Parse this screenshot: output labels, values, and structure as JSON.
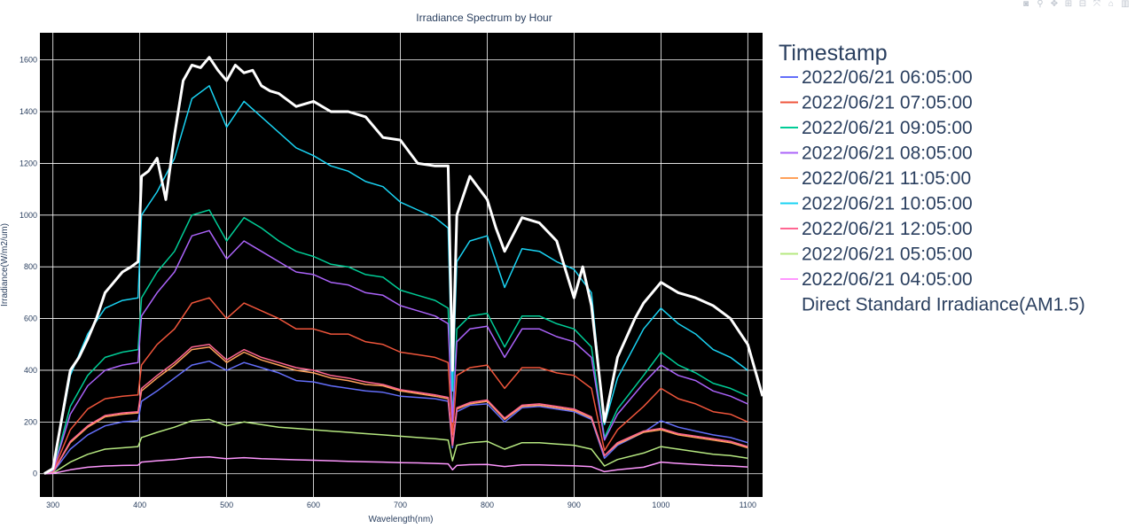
{
  "modebar": {
    "icons": [
      "camera-icon",
      "zoom-icon",
      "pan-icon",
      "zoom-in-icon",
      "zoom-out-icon",
      "autoscale-icon",
      "reset-axes-icon",
      "plotly-logo-icon"
    ]
  },
  "chart_data": {
    "type": "line",
    "title": "Irradiance Spectrum by Hour",
    "xlabel": "Wavelength(nm)",
    "ylabel": "Irradiance(W/m2/um)",
    "xlim": [
      285,
      1117
    ],
    "ylim": [
      -90,
      1705
    ],
    "xticks": [
      300,
      400,
      500,
      600,
      700,
      800,
      900,
      1000,
      1100
    ],
    "yticks": [
      0,
      200,
      400,
      600,
      800,
      1000,
      1200,
      1400,
      1600
    ],
    "plot_background": "#000000",
    "grid": true,
    "legend": {
      "title": "Timestamp",
      "placement": "right"
    },
    "series": [
      {
        "name": "2022/06/21 06:05:00",
        "color": "#636efa",
        "x": [
          290,
          300,
          320,
          340,
          360,
          380,
          398,
          402,
          420,
          440,
          460,
          480,
          500,
          520,
          540,
          560,
          580,
          600,
          620,
          640,
          660,
          680,
          700,
          720,
          740,
          755,
          760,
          765,
          780,
          800,
          820,
          840,
          860,
          880,
          900,
          920,
          935,
          950,
          980,
          1000,
          1020,
          1040,
          1060,
          1080,
          1100
        ],
        "y": [
          0,
          5,
          95,
          150,
          185,
          200,
          205,
          280,
          320,
          370,
          420,
          435,
          400,
          430,
          410,
          390,
          360,
          355,
          340,
          330,
          320,
          315,
          300,
          295,
          290,
          280,
          100,
          240,
          265,
          270,
          200,
          255,
          260,
          250,
          240,
          210,
          60,
          110,
          160,
          205,
          180,
          165,
          150,
          140,
          120
        ]
      },
      {
        "name": "2022/06/21 07:05:00",
        "color": "#ef553b",
        "x": [
          290,
          300,
          320,
          340,
          360,
          380,
          398,
          402,
          420,
          440,
          460,
          480,
          500,
          520,
          540,
          560,
          580,
          600,
          620,
          640,
          660,
          680,
          700,
          720,
          740,
          755,
          760,
          765,
          780,
          800,
          820,
          840,
          860,
          880,
          900,
          920,
          935,
          950,
          980,
          1000,
          1020,
          1040,
          1060,
          1080,
          1100
        ],
        "y": [
          0,
          8,
          170,
          250,
          290,
          300,
          305,
          420,
          500,
          560,
          660,
          680,
          600,
          660,
          630,
          600,
          560,
          560,
          540,
          540,
          510,
          500,
          470,
          460,
          450,
          430,
          150,
          380,
          410,
          420,
          330,
          410,
          410,
          390,
          380,
          330,
          90,
          170,
          260,
          330,
          290,
          270,
          240,
          230,
          200
        ]
      },
      {
        "name": "2022/06/21 09:05:00",
        "color": "#00cc96",
        "x": [
          290,
          300,
          320,
          340,
          360,
          380,
          398,
          402,
          420,
          440,
          460,
          480,
          500,
          520,
          540,
          560,
          580,
          600,
          620,
          640,
          660,
          680,
          700,
          720,
          740,
          755,
          760,
          765,
          780,
          800,
          820,
          840,
          860,
          880,
          900,
          920,
          935,
          950,
          980,
          1000,
          1020,
          1040,
          1060,
          1080,
          1100
        ],
        "y": [
          0,
          10,
          260,
          380,
          450,
          470,
          480,
          680,
          780,
          860,
          1000,
          1020,
          900,
          990,
          950,
          900,
          860,
          840,
          810,
          800,
          770,
          760,
          710,
          690,
          670,
          640,
          220,
          560,
          610,
          620,
          490,
          610,
          610,
          580,
          560,
          490,
          140,
          250,
          380,
          470,
          420,
          390,
          350,
          330,
          300
        ]
      },
      {
        "name": "2022/06/21 08:05:00",
        "color": "#ab63fa",
        "x": [
          290,
          300,
          320,
          340,
          360,
          380,
          398,
          402,
          420,
          440,
          460,
          480,
          500,
          520,
          540,
          560,
          580,
          600,
          620,
          640,
          660,
          680,
          700,
          720,
          740,
          755,
          760,
          765,
          780,
          800,
          820,
          840,
          860,
          880,
          900,
          920,
          935,
          950,
          980,
          1000,
          1020,
          1040,
          1060,
          1080,
          1100
        ],
        "y": [
          0,
          9,
          230,
          340,
          400,
          420,
          430,
          610,
          700,
          780,
          920,
          940,
          830,
          900,
          860,
          820,
          780,
          770,
          740,
          730,
          700,
          690,
          650,
          630,
          610,
          580,
          200,
          510,
          560,
          570,
          450,
          560,
          560,
          530,
          510,
          450,
          130,
          230,
          350,
          420,
          380,
          360,
          320,
          300,
          270
        ]
      },
      {
        "name": "2022/06/21 11:05:00",
        "color": "#ffa15a",
        "x": [
          290,
          300,
          320,
          340,
          360,
          380,
          398,
          402,
          420,
          440,
          460,
          480,
          500,
          520,
          540,
          560,
          580,
          600,
          620,
          640,
          660,
          680,
          700,
          720,
          740,
          755,
          760,
          765,
          780,
          800,
          820,
          840,
          860,
          880,
          900,
          920,
          935,
          950,
          980,
          1000,
          1020,
          1040,
          1060,
          1080,
          1100
        ],
        "y": [
          0,
          6,
          120,
          180,
          220,
          230,
          235,
          320,
          370,
          420,
          480,
          490,
          430,
          470,
          440,
          420,
          400,
          390,
          370,
          360,
          345,
          340,
          320,
          310,
          300,
          290,
          110,
          250,
          270,
          280,
          210,
          260,
          265,
          255,
          245,
          215,
          70,
          115,
          160,
          170,
          150,
          140,
          130,
          120,
          100
        ]
      },
      {
        "name": "2022/06/21 10:05:00",
        "color": "#19d3f3",
        "x": [
          290,
          300,
          320,
          340,
          360,
          380,
          398,
          402,
          420,
          440,
          460,
          480,
          500,
          520,
          540,
          560,
          580,
          600,
          620,
          640,
          660,
          680,
          700,
          720,
          740,
          755,
          760,
          765,
          780,
          800,
          820,
          840,
          860,
          880,
          900,
          920,
          935,
          950,
          980,
          1000,
          1020,
          1040,
          1060,
          1080,
          1100
        ],
        "y": [
          0,
          15,
          380,
          540,
          640,
          670,
          680,
          1000,
          1090,
          1220,
          1450,
          1500,
          1340,
          1440,
          1380,
          1320,
          1260,
          1230,
          1190,
          1170,
          1130,
          1110,
          1050,
          1020,
          990,
          950,
          320,
          820,
          900,
          920,
          720,
          870,
          860,
          820,
          790,
          700,
          190,
          370,
          560,
          640,
          580,
          540,
          480,
          450,
          400
        ]
      },
      {
        "name": "2022/06/21 12:05:00",
        "color": "#ff6692",
        "x": [
          290,
          300,
          320,
          340,
          360,
          380,
          398,
          402,
          420,
          440,
          460,
          480,
          500,
          520,
          540,
          560,
          580,
          600,
          620,
          640,
          660,
          680,
          700,
          720,
          740,
          755,
          760,
          765,
          780,
          800,
          820,
          840,
          860,
          880,
          900,
          920,
          935,
          950,
          980,
          1000,
          1020,
          1040,
          1060,
          1080,
          1100
        ],
        "y": [
          0,
          6,
          125,
          185,
          225,
          235,
          240,
          330,
          380,
          430,
          490,
          500,
          440,
          480,
          450,
          430,
          410,
          400,
          380,
          370,
          355,
          345,
          325,
          315,
          305,
          295,
          110,
          255,
          275,
          285,
          215,
          265,
          270,
          260,
          250,
          220,
          70,
          120,
          165,
          175,
          155,
          145,
          135,
          125,
          105
        ]
      },
      {
        "name": "2022/06/21 05:05:00",
        "color": "#b6e880",
        "x": [
          290,
          300,
          320,
          340,
          360,
          380,
          398,
          402,
          420,
          440,
          460,
          480,
          500,
          520,
          540,
          560,
          580,
          600,
          620,
          640,
          660,
          680,
          700,
          720,
          740,
          755,
          760,
          765,
          780,
          800,
          820,
          840,
          860,
          880,
          900,
          920,
          935,
          950,
          980,
          1000,
          1020,
          1040,
          1060,
          1080,
          1100
        ],
        "y": [
          0,
          2,
          45,
          75,
          95,
          100,
          105,
          140,
          160,
          180,
          205,
          210,
          185,
          200,
          190,
          180,
          175,
          170,
          165,
          160,
          155,
          150,
          145,
          140,
          135,
          130,
          50,
          110,
          120,
          125,
          95,
          120,
          120,
          115,
          110,
          95,
          30,
          55,
          80,
          105,
          95,
          85,
          75,
          70,
          60
        ]
      },
      {
        "name": "2022/06/21 04:05:00",
        "color": "#ff97ff",
        "x": [
          290,
          300,
          320,
          340,
          360,
          380,
          398,
          402,
          420,
          440,
          460,
          480,
          500,
          520,
          540,
          560,
          580,
          600,
          620,
          640,
          660,
          680,
          700,
          720,
          740,
          755,
          760,
          765,
          780,
          800,
          820,
          840,
          860,
          880,
          900,
          920,
          935,
          950,
          980,
          1000,
          1020,
          1040,
          1060,
          1080,
          1100
        ],
        "y": [
          0,
          1,
          15,
          25,
          30,
          32,
          33,
          45,
          50,
          55,
          62,
          65,
          58,
          62,
          58,
          56,
          54,
          52,
          50,
          48,
          46,
          45,
          43,
          42,
          40,
          38,
          15,
          32,
          35,
          36,
          28,
          34,
          34,
          32,
          31,
          27,
          8,
          15,
          25,
          45,
          40,
          36,
          32,
          30,
          26
        ]
      },
      {
        "name": "Direct Standard Irradiance(AM1.5)",
        "color": "#ffffff",
        "x": [
          290,
          300,
          320,
          330,
          340,
          350,
          360,
          370,
          380,
          390,
          398,
          402,
          410,
          420,
          430,
          440,
          450,
          460,
          470,
          480,
          490,
          500,
          510,
          520,
          530,
          540,
          550,
          560,
          580,
          600,
          620,
          640,
          660,
          680,
          700,
          720,
          740,
          755,
          760,
          765,
          780,
          800,
          810,
          820,
          840,
          860,
          880,
          900,
          910,
          920,
          935,
          950,
          970,
          980,
          1000,
          1020,
          1040,
          1060,
          1080,
          1100,
          1117
        ],
        "y": [
          0,
          20,
          400,
          450,
          520,
          600,
          700,
          740,
          780,
          800,
          820,
          1150,
          1170,
          1220,
          1060,
          1310,
          1520,
          1580,
          1570,
          1610,
          1560,
          1520,
          1580,
          1550,
          1560,
          1500,
          1480,
          1470,
          1420,
          1440,
          1400,
          1400,
          1380,
          1300,
          1290,
          1200,
          1190,
          1190,
          400,
          1000,
          1150,
          1060,
          950,
          860,
          990,
          970,
          900,
          680,
          800,
          650,
          200,
          450,
          600,
          660,
          740,
          700,
          680,
          650,
          600,
          500,
          300
        ]
      }
    ]
  }
}
